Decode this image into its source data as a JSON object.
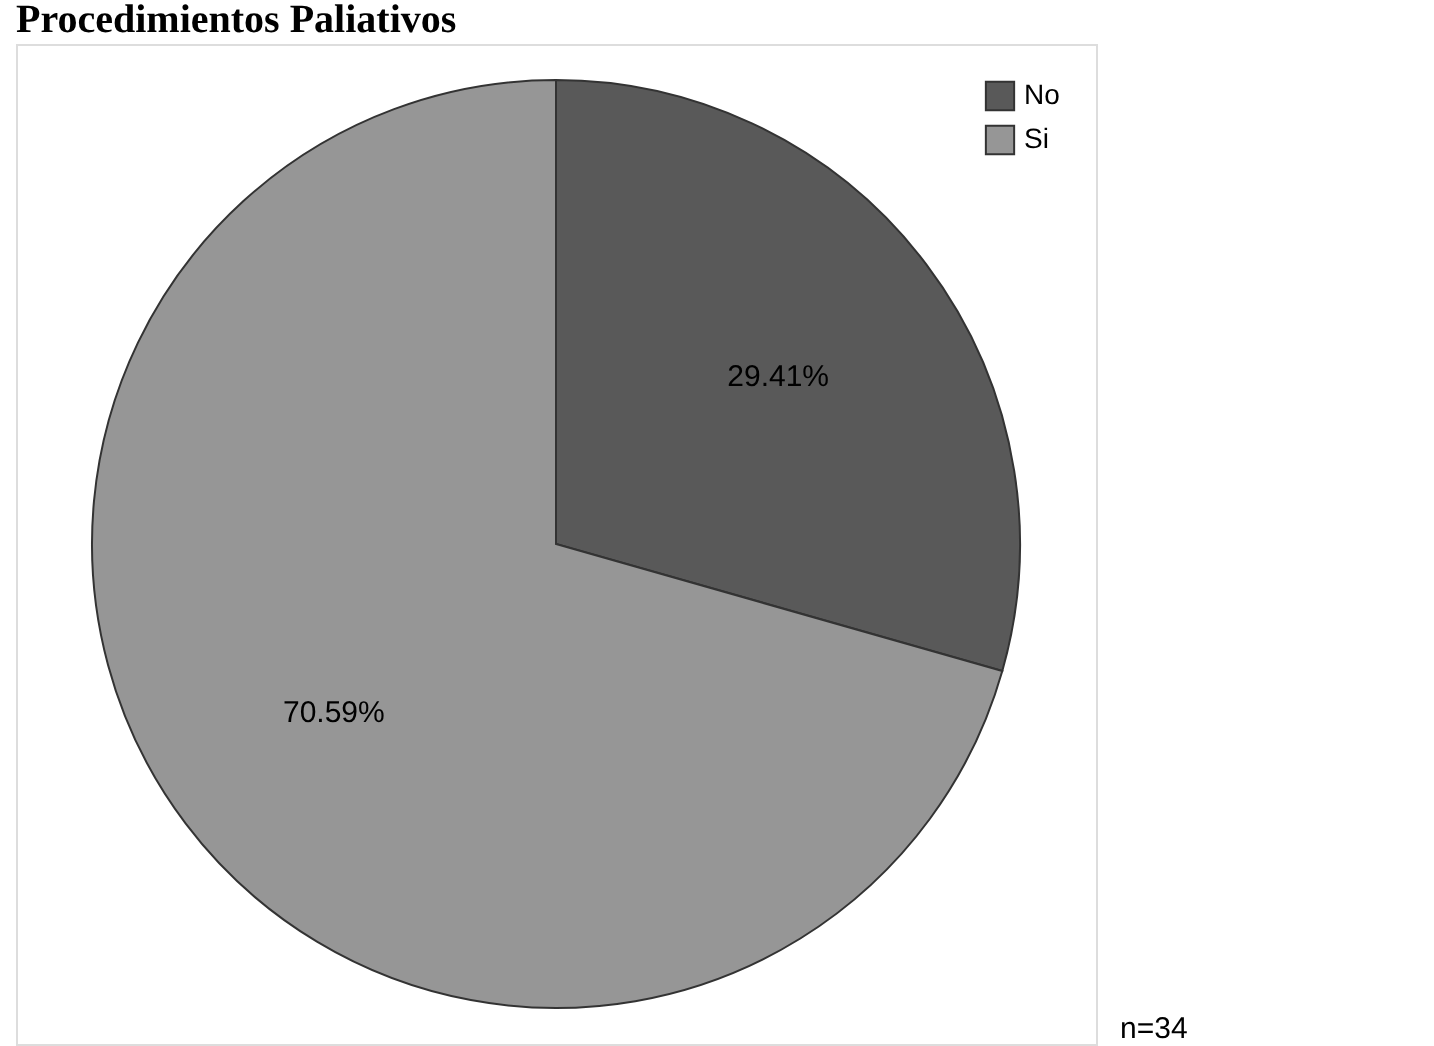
{
  "chart_data": {
    "type": "pie",
    "title": "Procedimientos Paliativos",
    "categories": [
      "No",
      "Si"
    ],
    "values": [
      29.41,
      70.59
    ],
    "colors": [
      "#595959",
      "#969696"
    ],
    "value_labels": [
      "29.41%",
      "70.59%"
    ],
    "legend": "top right",
    "annotations": [
      "n=34"
    ]
  }
}
